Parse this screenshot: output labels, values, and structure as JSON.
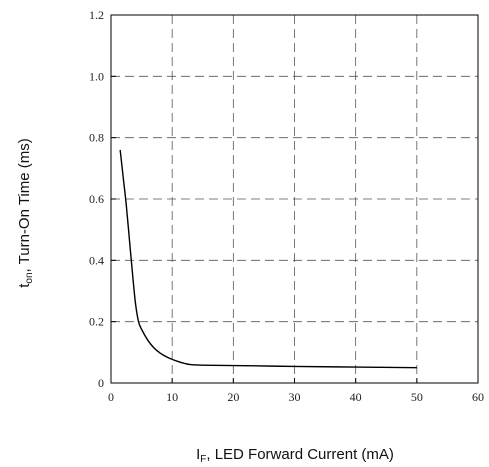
{
  "chart_data": {
    "type": "line",
    "title": "",
    "xlabel": {
      "main": "I",
      "sub": "F",
      "rest": ", LED Forward Current (mA)"
    },
    "ylabel": {
      "main": "t",
      "sub": "on",
      "rest": ", Turn-On Time (ms)"
    },
    "xlim": [
      0,
      60
    ],
    "ylim": [
      0,
      1.2
    ],
    "xticks": [
      "0",
      "10",
      "20",
      "30",
      "40",
      "50",
      "60"
    ],
    "yticks": [
      "0",
      "0.2",
      "0.4",
      "0.6",
      "0.8",
      "1.0",
      "1.2"
    ],
    "grid": true,
    "grid_style": "dashed",
    "line_color": "#000000",
    "series": [
      {
        "x": [
          1.5,
          2,
          2.5,
          3,
          3.5,
          4,
          4.5,
          5,
          6,
          7,
          8,
          9,
          10,
          11,
          12,
          13,
          15,
          20,
          30,
          40,
          50
        ],
        "y": [
          0.76,
          0.67,
          0.58,
          0.47,
          0.36,
          0.26,
          0.2,
          0.175,
          0.14,
          0.115,
          0.098,
          0.086,
          0.077,
          0.07,
          0.064,
          0.06,
          0.058,
          0.057,
          0.054,
          0.052,
          0.05
        ]
      }
    ]
  }
}
